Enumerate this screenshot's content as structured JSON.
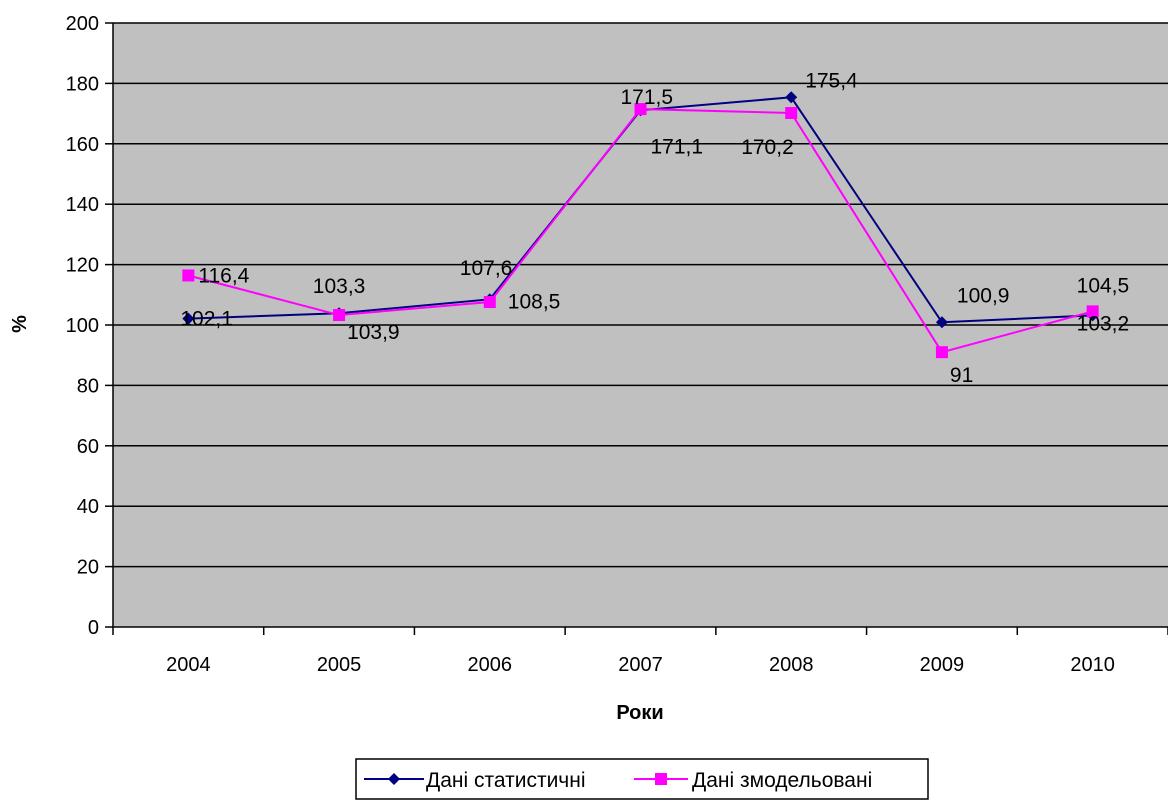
{
  "chart_data": {
    "type": "line",
    "categories": [
      "2004",
      "2005",
      "2006",
      "2007",
      "2008",
      "2009",
      "2010"
    ],
    "xlabel": "Роки",
    "ylabel": "%",
    "ylim": [
      0,
      200
    ],
    "yticks": [
      0,
      20,
      40,
      60,
      80,
      100,
      120,
      140,
      160,
      180,
      200
    ],
    "grid": "horizontal",
    "legend_position": "bottom",
    "plot_background": "#C0C0C0",
    "series": [
      {
        "name": "Дані статистичні",
        "color": "#000080",
        "marker": "diamond",
        "values": [
          102.1,
          103.9,
          108.5,
          171.1,
          175.4,
          100.9,
          103.2
        ],
        "labels": [
          "102,1",
          "103,9",
          "108,5",
          "171,1",
          "175,4",
          "100,9",
          "103,2"
        ]
      },
      {
        "name": "Дані змодельовані",
        "color": "#FF00FF",
        "marker": "square",
        "values": [
          116.4,
          103.3,
          107.6,
          171.5,
          170.2,
          91,
          104.5
        ],
        "labels": [
          "116,4",
          "103,3",
          "107,6",
          "171,5",
          "170,2",
          "91",
          "104,5"
        ]
      }
    ]
  }
}
